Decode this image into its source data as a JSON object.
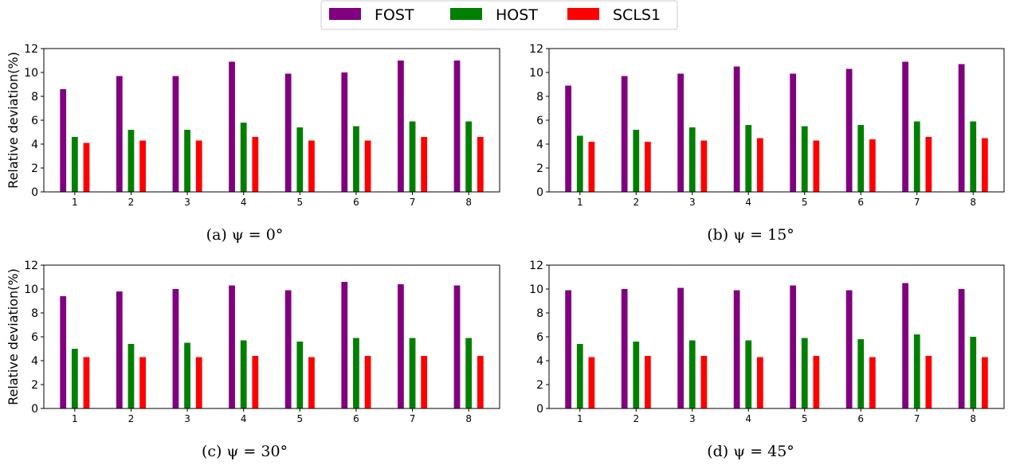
{
  "legend": {
    "items": [
      {
        "label": "FOST",
        "color": "#800080"
      },
      {
        "label": "HOST",
        "color": "#008000"
      },
      {
        "label": "SCLS1",
        "color": "#ff0000"
      }
    ]
  },
  "chart_data": [
    {
      "type": "bar",
      "caption": "(a) ψ = 0°",
      "ylabel": "Relative deviation(%)",
      "categories": [
        "1",
        "2",
        "3",
        "4",
        "5",
        "6",
        "7",
        "8"
      ],
      "yticks": [
        "0",
        "2",
        "4",
        "6",
        "8",
        "10",
        "12"
      ],
      "ylim": [
        0,
        12
      ],
      "series": [
        {
          "name": "FOST",
          "values": [
            8.6,
            9.7,
            9.7,
            10.9,
            9.9,
            10.0,
            11.0,
            11.0
          ]
        },
        {
          "name": "HOST",
          "values": [
            4.6,
            5.2,
            5.2,
            5.8,
            5.4,
            5.5,
            5.9,
            5.9
          ]
        },
        {
          "name": "SCLS1",
          "values": [
            4.1,
            4.3,
            4.3,
            4.6,
            4.3,
            4.3,
            4.6,
            4.6
          ]
        }
      ]
    },
    {
      "type": "bar",
      "caption": "(b) ψ = 15°",
      "ylabel": "",
      "categories": [
        "1",
        "2",
        "3",
        "4",
        "5",
        "6",
        "7",
        "8"
      ],
      "yticks": [
        "0",
        "2",
        "4",
        "6",
        "8",
        "10",
        "12"
      ],
      "ylim": [
        0,
        12
      ],
      "series": [
        {
          "name": "FOST",
          "values": [
            8.9,
            9.7,
            9.9,
            10.5,
            9.9,
            10.3,
            10.9,
            10.7
          ]
        },
        {
          "name": "HOST",
          "values": [
            4.7,
            5.2,
            5.4,
            5.6,
            5.5,
            5.6,
            5.9,
            5.9
          ]
        },
        {
          "name": "SCLS1",
          "values": [
            4.2,
            4.2,
            4.3,
            4.5,
            4.3,
            4.4,
            4.6,
            4.5
          ]
        }
      ]
    },
    {
      "type": "bar",
      "caption": "(c) ψ = 30°",
      "ylabel": "Relative deviation(%)",
      "categories": [
        "1",
        "2",
        "3",
        "4",
        "5",
        "6",
        "7",
        "8"
      ],
      "yticks": [
        "0",
        "2",
        "4",
        "6",
        "8",
        "10",
        "12"
      ],
      "ylim": [
        0,
        12
      ],
      "series": [
        {
          "name": "FOST",
          "values": [
            9.4,
            9.8,
            10.0,
            10.3,
            9.9,
            10.6,
            10.4,
            10.3
          ]
        },
        {
          "name": "HOST",
          "values": [
            5.0,
            5.4,
            5.5,
            5.7,
            5.6,
            5.9,
            5.9,
            5.9
          ]
        },
        {
          "name": "SCLS1",
          "values": [
            4.3,
            4.3,
            4.3,
            4.4,
            4.3,
            4.4,
            4.4,
            4.4
          ]
        }
      ]
    },
    {
      "type": "bar",
      "caption": "(d) ψ = 45°",
      "ylabel": "",
      "categories": [
        "1",
        "2",
        "3",
        "4",
        "5",
        "6",
        "7",
        "8"
      ],
      "yticks": [
        "0",
        "2",
        "4",
        "6",
        "8",
        "10",
        "12"
      ],
      "ylim": [
        0,
        12
      ],
      "series": [
        {
          "name": "FOST",
          "values": [
            9.9,
            10.0,
            10.1,
            9.9,
            10.3,
            9.9,
            10.5,
            10.0
          ]
        },
        {
          "name": "HOST",
          "values": [
            5.4,
            5.6,
            5.7,
            5.7,
            5.9,
            5.8,
            6.2,
            6.0
          ]
        },
        {
          "name": "SCLS1",
          "values": [
            4.3,
            4.4,
            4.4,
            4.3,
            4.4,
            4.3,
            4.4,
            4.3
          ]
        }
      ]
    }
  ]
}
